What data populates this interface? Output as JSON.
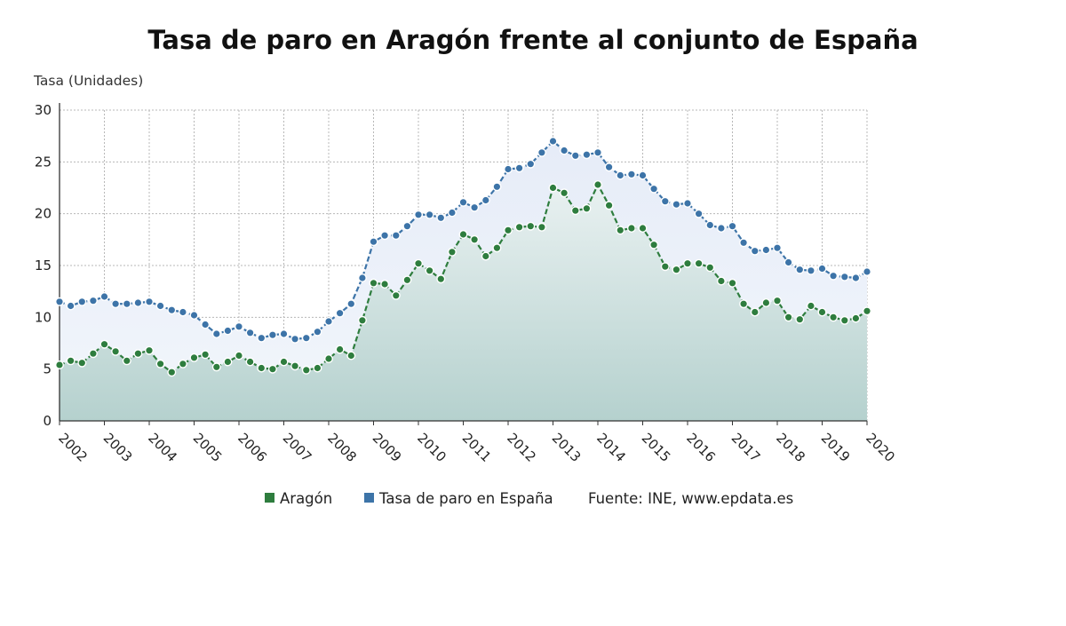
{
  "chart_data": {
    "type": "line",
    "title": "Tasa de paro en Aragón frente al conjunto de España",
    "ylabel": "Tasa (Unidades)",
    "xlabel": "",
    "ylim": [
      0,
      30
    ],
    "yticks": [
      "0",
      "5",
      "10",
      "15",
      "20",
      "25",
      "30"
    ],
    "xticks": [
      "2002",
      "2003",
      "2004",
      "2005",
      "2006",
      "2007",
      "2008",
      "2009",
      "2010",
      "2011",
      "2012",
      "2013",
      "2014",
      "2015",
      "2016",
      "2017",
      "2018",
      "2019",
      "2020"
    ],
    "grid": true,
    "x_start": 2002,
    "points_per_year": 4,
    "series": [
      {
        "name": "Aragón",
        "color": "#2e7d3e",
        "values": [
          5.4,
          5.8,
          5.6,
          6.5,
          7.4,
          6.7,
          5.8,
          6.5,
          6.8,
          5.5,
          4.7,
          5.5,
          6.1,
          6.4,
          5.2,
          5.7,
          6.3,
          5.7,
          5.1,
          5.0,
          5.7,
          5.3,
          4.9,
          5.1,
          6.0,
          6.9,
          6.3,
          9.7,
          13.3,
          13.2,
          12.1,
          13.6,
          15.2,
          14.5,
          13.7,
          16.3,
          18.0,
          17.5,
          15.9,
          16.7,
          18.4,
          18.7,
          18.8,
          18.7,
          22.5,
          22.0,
          20.3,
          20.5,
          22.8,
          20.8,
          18.4,
          18.6,
          18.6,
          17.0,
          14.9,
          14.6,
          15.2,
          15.2,
          14.8,
          13.5,
          13.3,
          11.3,
          10.5,
          11.4,
          11.6,
          10.0,
          9.8,
          11.1,
          10.5,
          10.0,
          9.7,
          9.9,
          10.6
        ]
      },
      {
        "name": "Tasa de paro en España",
        "color": "#3d74a8",
        "values": [
          11.5,
          11.1,
          11.5,
          11.6,
          12.0,
          11.3,
          11.3,
          11.4,
          11.5,
          11.1,
          10.7,
          10.5,
          10.2,
          9.3,
          8.4,
          8.7,
          9.1,
          8.5,
          8.0,
          8.3,
          8.4,
          7.9,
          8.0,
          8.6,
          9.6,
          10.4,
          11.3,
          13.8,
          17.3,
          17.9,
          17.9,
          18.8,
          19.9,
          19.9,
          19.6,
          20.1,
          21.1,
          20.6,
          21.3,
          22.6,
          24.3,
          24.4,
          24.8,
          25.9,
          27.0,
          26.1,
          25.6,
          25.7,
          25.9,
          24.5,
          23.7,
          23.8,
          23.7,
          22.4,
          21.2,
          20.9,
          21.0,
          20.0,
          18.9,
          18.6,
          18.8,
          17.2,
          16.4,
          16.5,
          16.7,
          15.3,
          14.6,
          14.5,
          14.7,
          14.0,
          13.9,
          13.8,
          14.4
        ]
      }
    ],
    "legend_position": "bottom",
    "source_note": "Fuente: INE, www.epdata.es"
  }
}
